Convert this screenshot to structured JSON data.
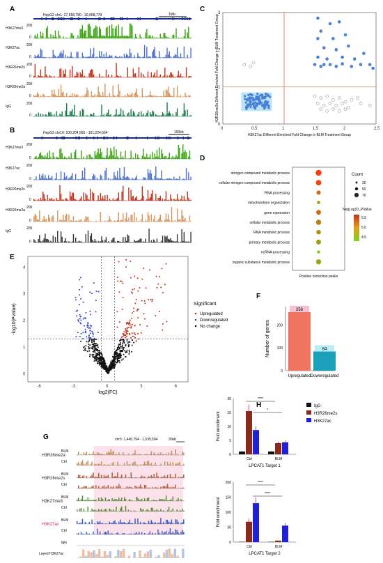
{
  "panel_letters": {
    "A": "A",
    "B": "B",
    "C": "C",
    "D": "D",
    "E": "E",
    "F": "F",
    "G": "G",
    "H": "H"
  },
  "panelA": {
    "title": "HepG2  chr1: 27,558,780 - 32,658,779",
    "scale": "1Mb",
    "tracks": [
      {
        "name": "H3K27me3",
        "ymax": "200",
        "ymin": "0",
        "color": "#3aa312"
      },
      {
        "name": "H3K27ac",
        "ymax": "200",
        "ymin": "0",
        "color": "#4a6fd0"
      },
      {
        "name": "H3R26me2s",
        "ymax": "200",
        "ymin": "0",
        "color": "#c0321d"
      },
      {
        "name": "H3R26me2a",
        "ymax": "200",
        "ymin": "0",
        "color": "#d8935a"
      },
      {
        "name": "IgG",
        "ymax": "200",
        "ymin": "0",
        "color": "#1a7a4d"
      }
    ]
  },
  "panelB": {
    "title": "HepG2  chr10: 100,204,565 - 101,224,564",
    "scale": "100kb",
    "tracks": [
      {
        "name": "H3K27me3",
        "ymax": "200",
        "ymin": "0",
        "color": "#3aa312"
      },
      {
        "name": "H3K27ac",
        "ymax": "200",
        "ymin": "0",
        "color": "#4a6fd0"
      },
      {
        "name": "H3R26me2s",
        "ymax": "200",
        "ymin": "0",
        "color": "#c0321d"
      },
      {
        "name": "H3R26me2a",
        "ymax": "200",
        "ymin": "0",
        "color": "#d8935a"
      },
      {
        "name": "IgG",
        "ymax": "200",
        "ymin": "0",
        "color": "#333333"
      }
    ]
  },
  "chart_data": [
    {
      "panel": "C",
      "type": "scatter",
      "xlabel": "H3K27ac Different Enriched Fold Change in BLM Treatment Group",
      "ylabel": "H3R26me2s Different Enriched Fold Change in BLM Treatment Group",
      "xlim": [
        0,
        2.5
      ],
      "ylim": [
        0,
        3
      ],
      "xticks": [
        "0",
        "0.5",
        "1",
        "1.5",
        "2",
        "2.5"
      ],
      "yticks": [
        "0",
        "1",
        "2",
        "3"
      ],
      "series": [
        {
          "color": "#4a80d8",
          "points": [
            [
              1.55,
              2.85
            ],
            [
              1.75,
              2.7
            ],
            [
              1.9,
              2.75
            ],
            [
              1.6,
              2.5
            ],
            [
              1.55,
              2.3
            ],
            [
              1.8,
              2.3
            ],
            [
              2.0,
              2.4
            ],
            [
              1.65,
              2.05
            ],
            [
              1.85,
              2.0
            ],
            [
              2.05,
              2.1
            ],
            [
              1.55,
              1.8
            ],
            [
              1.7,
              1.75
            ],
            [
              1.95,
              1.8
            ],
            [
              2.15,
              1.75
            ],
            [
              2.3,
              1.9
            ],
            [
              1.5,
              1.6
            ],
            [
              1.6,
              1.55
            ],
            [
              1.65,
              1.6
            ],
            [
              1.75,
              1.6
            ],
            [
              1.85,
              1.55
            ],
            [
              1.95,
              1.62
            ],
            [
              2.1,
              1.55
            ],
            [
              2.25,
              1.6
            ],
            [
              2.4,
              1.6
            ],
            [
              2.45,
              1.5
            ],
            [
              0.45,
              0.7
            ],
            [
              0.5,
              0.65
            ],
            [
              0.55,
              0.68
            ],
            [
              0.6,
              0.62
            ],
            [
              0.65,
              0.7
            ],
            [
              0.5,
              0.55
            ],
            [
              0.55,
              0.5
            ],
            [
              0.6,
              0.55
            ],
            [
              0.45,
              0.6
            ],
            [
              0.4,
              0.65
            ],
            [
              0.7,
              0.6
            ],
            [
              0.65,
              0.5
            ],
            [
              0.52,
              0.45
            ],
            [
              0.58,
              0.72
            ]
          ]
        },
        {
          "color": "#999999",
          "points": [
            [
              0.35,
              1.6
            ],
            [
              0.45,
              1.55
            ],
            [
              0.5,
              1.65
            ],
            [
              1.5,
              0.75
            ],
            [
              1.6,
              0.7
            ],
            [
              1.7,
              0.75
            ],
            [
              1.8,
              0.65
            ],
            [
              1.9,
              0.7
            ],
            [
              2.0,
              0.6
            ],
            [
              2.1,
              0.65
            ],
            [
              2.2,
              0.7
            ],
            [
              1.55,
              0.55
            ],
            [
              1.65,
              0.5
            ],
            [
              1.75,
              0.55
            ],
            [
              1.85,
              0.5
            ],
            [
              1.95,
              0.55
            ],
            [
              2.05,
              0.45
            ],
            [
              2.25,
              0.55
            ],
            [
              2.4,
              0.5
            ],
            [
              1.6,
              0.4
            ],
            [
              1.7,
              0.35
            ],
            [
              1.8,
              0.4
            ],
            [
              1.9,
              0.35
            ],
            [
              2.0,
              0.4
            ]
          ]
        }
      ],
      "ref_lines": {
        "x": 1,
        "y": 1
      }
    },
    {
      "panel": "D",
      "type": "scatter",
      "categories": [
        "nitrogen compound metabolic process",
        "cellular nitrogen compound metabolic process",
        "RNA processing",
        "mitochondrion organization",
        "gene expression",
        "cellular metabolic process",
        "RNA metabolic process",
        "primary metabolic process",
        "ncRNA processing",
        "organic substance metabolic process"
      ],
      "values_count": [
        70,
        65,
        45,
        30,
        55,
        60,
        50,
        55,
        25,
        60
      ],
      "values_pvalue": [
        5.8,
        5.6,
        5.3,
        4.6,
        5.2,
        5.0,
        4.8,
        4.7,
        4.3,
        4.6
      ],
      "xlabel": "Positive correction peaks",
      "legend_count_title": "Count",
      "legend_count": [
        "30",
        "50",
        "70"
      ],
      "legend_color_title": "NegLog10_PValue",
      "legend_color": [
        "5.5",
        "5.0",
        "4.5"
      ]
    },
    {
      "panel": "E",
      "type": "scatter",
      "xlabel": "log2(FC)",
      "ylabel": "-log10(Pvalue)",
      "xticks": [
        "-6",
        "-3",
        "0",
        "3",
        "6"
      ],
      "yticks": [
        "0",
        "1",
        "2",
        "3",
        "4"
      ],
      "xlim": [
        -7,
        7
      ],
      "ylim": [
        -0.3,
        4.4
      ],
      "legend_title": "Significant",
      "legend": [
        {
          "label": "Upregulated",
          "color": "#c0321d"
        },
        {
          "label": "Downregulated",
          "color": "#3344cc"
        },
        {
          "label": "No change",
          "color": "#111111"
        }
      ]
    },
    {
      "panel": "F",
      "type": "bar",
      "categories": [
        "Upregulated",
        "Downregulated"
      ],
      "values": [
        256,
        84
      ],
      "colors": [
        "#f07560",
        "#1aa0b8"
      ],
      "ylabel": "Number of genes",
      "ylim": [
        0,
        280
      ],
      "yticks": [
        "0",
        "100",
        "200"
      ]
    },
    {
      "panel": "H1",
      "type": "bar",
      "xlabel": "LPCAT1 Target 1",
      "ylabel": "Fold enrichment",
      "categories": [
        "Ctrl",
        "BLM"
      ],
      "series": [
        {
          "name": "IgG",
          "color": "#111111",
          "values": [
            1,
            1
          ]
        },
        {
          "name": "H3R26me2s",
          "color": "#8b2a1a",
          "values": [
            15.5,
            4
          ]
        },
        {
          "name": "H3K27ac",
          "color": "#2020d8",
          "values": [
            8.7,
            4.3
          ]
        }
      ],
      "ylim": [
        0,
        20
      ],
      "yticks": [
        "0",
        "5",
        "10",
        "15",
        "20"
      ],
      "sig": [
        "****",
        "*"
      ]
    },
    {
      "panel": "H2",
      "type": "bar",
      "xlabel": "LPCAT1 Target 2",
      "ylabel": "Fold enrichment",
      "categories": [
        "Ctrl",
        "BLM"
      ],
      "series": [
        {
          "name": "IgG",
          "color": "#111111",
          "values": [
            1,
            1
          ]
        },
        {
          "name": "H3R26me2s",
          "color": "#8b2a1a",
          "values": [
            68,
            5
          ]
        },
        {
          "name": "H3K27ac",
          "color": "#2020d8",
          "values": [
            130,
            55
          ]
        }
      ],
      "ylim": [
        0,
        200
      ],
      "yticks": [
        "0",
        "50",
        "100",
        "150",
        "200"
      ],
      "sig": [
        "****",
        "****"
      ]
    }
  ],
  "panelG": {
    "title": "chr5: 1,445,794 - 1,539,594",
    "scale": "30kb",
    "groups": [
      "H3R26me2a",
      "H3R26me2s",
      "H3K27me3",
      "H3K27ac"
    ],
    "conds": [
      "BLM",
      "Ctrl"
    ],
    "igg": "IgG",
    "layed": "Layed H3K27ac",
    "gene": "LPCAT1"
  },
  "legendH": [
    {
      "label": "IgG",
      "color": "#111111"
    },
    {
      "label": "H3R26me2s",
      "color": "#8b2a1a"
    },
    {
      "label": "H3K27ac",
      "color": "#2020d8"
    }
  ]
}
